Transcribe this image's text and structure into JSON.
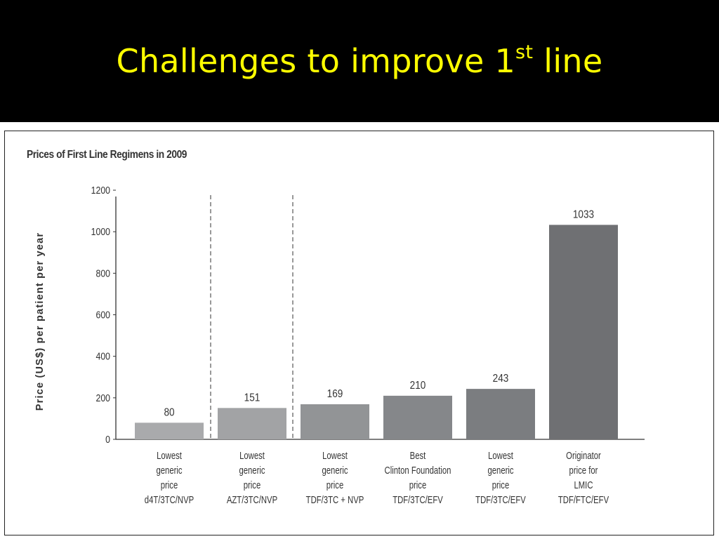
{
  "slide": {
    "title_main": "Challenges to improve 1",
    "title_sup": "st",
    "title_end": " line"
  },
  "colors": {
    "background": "#000000",
    "title": "#ffff00",
    "panel": "#ffffff",
    "bars": [
      "#a9aaac",
      "#a2a3a5",
      "#929496",
      "#85878a",
      "#7b7d80",
      "#6f7073"
    ]
  },
  "chart_data": {
    "type": "bar",
    "title": "Prices of First Line Regimens in 2009",
    "ylabel": "Price (US$) per patient per year",
    "xlabel": "",
    "ylim": [
      0,
      1200
    ],
    "yticks": [
      0,
      200,
      400,
      600,
      800,
      1000,
      1200
    ],
    "grid": false,
    "categories": [
      [
        "Lowest",
        "generic",
        "price",
        "d4T/3TC/NVP"
      ],
      [
        "Lowest",
        "generic",
        "price",
        "AZT/3TC/NVP"
      ],
      [
        "Lowest",
        "generic",
        "price",
        "TDF/3TC + NVP"
      ],
      [
        "Best",
        "Clinton Foundation",
        "price",
        "TDF/3TC/EFV"
      ],
      [
        "Lowest",
        "generic",
        "price",
        "TDF/3TC/EFV"
      ],
      [
        "Originator",
        "price for",
        "LMIC",
        "TDF/FTC/EFV"
      ]
    ],
    "values": [
      80,
      151,
      169,
      210,
      243,
      1033
    ],
    "data_labels": [
      "80",
      "151",
      "169",
      "210",
      "243",
      "1033"
    ]
  }
}
